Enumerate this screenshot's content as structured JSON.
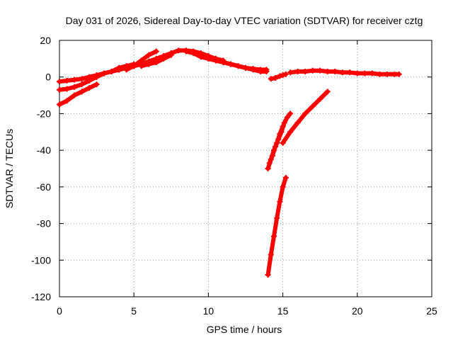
{
  "chart_data": {
    "type": "scatter",
    "title": "Day 031 of 2026, Sidereal Day-to-day VTEC variation (SDTVAR) for receiver cztg",
    "xlabel": "GPS time / hours",
    "ylabel": "SDTVAR / TECUs",
    "xlim": [
      0,
      25
    ],
    "ylim": [
      -120,
      20
    ],
    "xticks": [
      0,
      5,
      10,
      15,
      20,
      25
    ],
    "yticks": [
      -120,
      -100,
      -80,
      -60,
      -40,
      -20,
      0,
      20
    ],
    "grid": true,
    "legend": "none",
    "marker": "plus",
    "color": "#ff0000",
    "series": [
      {
        "x": [
          0.0,
          0.5,
          1.0,
          1.5,
          2.0,
          2.5,
          3.0,
          3.5,
          4.0,
          4.5,
          5.0,
          5.5,
          6.0,
          6.5,
          7.0
        ],
        "y": [
          -2.5,
          -2.0,
          -1.5,
          -1.0,
          0.0,
          1.0,
          2.0,
          3.0,
          4.0,
          5.0,
          6.0,
          7.0,
          8.0,
          9.0,
          11.0
        ]
      },
      {
        "x": [
          0.0,
          0.5,
          1.0,
          1.5,
          2.0,
          2.5
        ],
        "y": [
          -7.0,
          -6.5,
          -5.5,
          -4.0,
          -2.0,
          0.0
        ]
      },
      {
        "x": [
          0.0,
          0.5,
          1.0,
          1.5,
          2.0,
          2.5
        ],
        "y": [
          -15.0,
          -13.0,
          -10.0,
          -8.0,
          -6.0,
          -4.0
        ]
      },
      {
        "x": [
          2.5,
          3.0,
          3.5,
          4.0,
          4.5,
          5.0
        ],
        "y": [
          0.0,
          2.0,
          3.0,
          5.0,
          6.0,
          7.0
        ]
      },
      {
        "x": [
          4.5,
          5.0,
          5.5,
          6.0,
          6.5
        ],
        "y": [
          4.0,
          6.0,
          9.0,
          12.0,
          14.0
        ]
      },
      {
        "x": [
          3.0,
          3.5,
          4.0,
          4.5,
          5.0,
          5.5,
          6.0,
          6.5,
          7.0,
          7.5
        ],
        "y": [
          2.0,
          3.0,
          4.0,
          5.0,
          6.0,
          7.0,
          8.5,
          10.0,
          11.5,
          13.0
        ]
      },
      {
        "x": [
          5.5,
          6.0,
          6.5,
          7.0,
          7.5
        ],
        "y": [
          6.0,
          7.0,
          8.0,
          10.0,
          12.0
        ]
      },
      {
        "x": [
          7.5,
          8.0,
          8.5,
          9.0,
          9.5,
          10.0,
          10.5,
          11.0
        ],
        "y": [
          13.0,
          14.5,
          14.5,
          14.0,
          13.0,
          11.5,
          10.0,
          9.0
        ]
      },
      {
        "x": [
          8.5,
          9.0,
          9.5,
          10.0,
          10.5,
          11.0,
          11.5,
          12.0,
          12.5,
          13.0,
          13.5,
          13.9
        ],
        "y": [
          14.0,
          13.0,
          11.0,
          10.0,
          9.0,
          8.0,
          7.0,
          6.0,
          5.0,
          4.5,
          4.0,
          4.0
        ]
      },
      {
        "x": [
          10.0,
          10.5,
          11.0,
          11.5,
          12.0,
          12.5,
          13.0,
          13.5,
          13.9
        ],
        "y": [
          10.0,
          9.0,
          8.0,
          7.0,
          6.0,
          5.0,
          4.0,
          3.0,
          3.0
        ]
      },
      {
        "x": [
          14.2,
          14.5,
          14.8,
          15.0,
          15.2
        ],
        "y": [
          -1.0,
          -0.5,
          0.5,
          1.0,
          1.5
        ]
      },
      {
        "x": [
          15.5,
          16.0,
          16.5,
          17.0,
          17.5,
          18.0,
          18.5,
          19.0,
          19.5,
          20.0,
          20.5,
          21.0,
          21.5,
          22.0,
          22.5,
          22.8
        ],
        "y": [
          2.5,
          3.0,
          3.0,
          3.5,
          3.5,
          3.0,
          3.0,
          2.5,
          2.5,
          2.0,
          2.0,
          2.0,
          1.5,
          1.5,
          1.5,
          1.5
        ]
      },
      {
        "x": [
          14.0,
          14.2,
          14.4,
          14.6,
          14.8,
          15.0
        ],
        "y": [
          -50.0,
          -45.0,
          -40.0,
          -36.0,
          -31.0,
          -27.0
        ]
      },
      {
        "x": [
          14.1,
          14.3,
          14.5,
          14.7,
          14.9,
          15.1,
          15.3,
          15.5
        ],
        "y": [
          -47.0,
          -43.0,
          -38.0,
          -34.0,
          -30.0,
          -25.0,
          -22.0,
          -20.0
        ]
      },
      {
        "x": [
          15.0,
          15.5,
          16.0,
          16.5,
          17.0,
          17.5,
          18.0
        ],
        "y": [
          -36.0,
          -30.0,
          -25.0,
          -20.0,
          -16.0,
          -12.0,
          -8.0
        ]
      },
      {
        "x": [
          14.0,
          14.2,
          14.4,
          14.6,
          14.8,
          15.0,
          15.2
        ],
        "y": [
          -108.0,
          -97.0,
          -87.0,
          -77.0,
          -68.0,
          -60.0,
          -55.0
        ]
      }
    ]
  }
}
